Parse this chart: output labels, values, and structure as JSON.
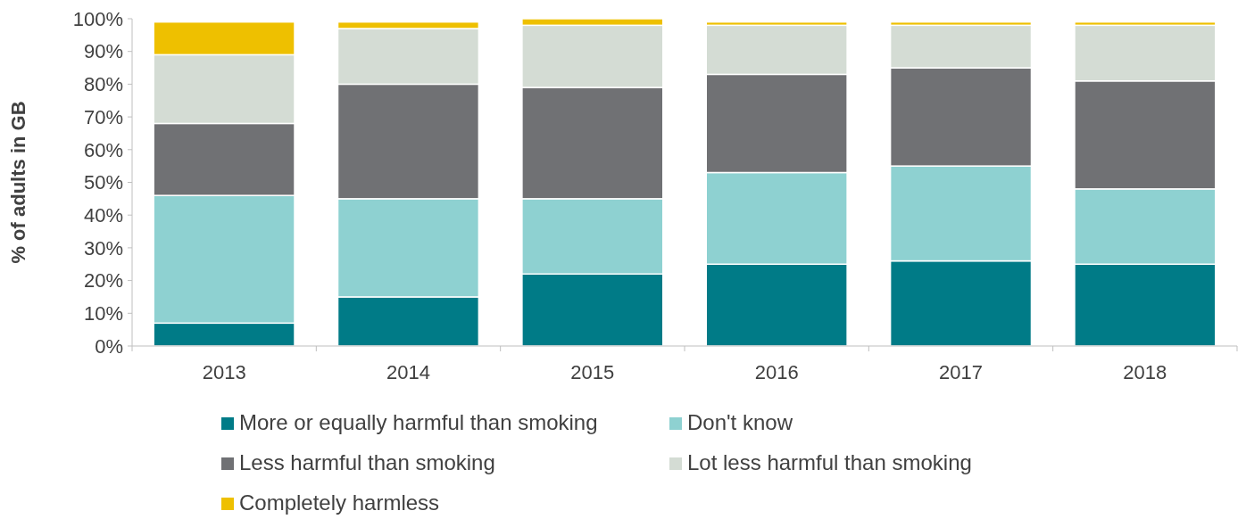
{
  "chart_data": {
    "type": "bar",
    "stacked": true,
    "ylabel": "% of adults in GB",
    "categories": [
      "2013",
      "2014",
      "2015",
      "2016",
      "2017",
      "2018"
    ],
    "series": [
      {
        "name": "More or equally harmful than smoking",
        "color": "#007b87",
        "values": [
          7,
          15,
          22,
          25,
          26,
          25
        ]
      },
      {
        "name": "Don't know",
        "color": "#8ed1d1",
        "values": [
          39,
          30,
          23,
          28,
          29,
          23
        ]
      },
      {
        "name": "Less harmful than smoking",
        "color": "#707174",
        "values": [
          22,
          35,
          34,
          30,
          30,
          33
        ]
      },
      {
        "name": "Lot less harmful than smoking",
        "color": "#d4dcd4",
        "values": [
          21,
          17,
          19,
          15,
          13,
          17
        ]
      },
      {
        "name": "Completely harmless",
        "color": "#eec000",
        "values": [
          10,
          2,
          2,
          1,
          1,
          1
        ]
      }
    ],
    "ylim": [
      0,
      100
    ],
    "yticks": [
      {
        "value": 0,
        "label": "0%"
      },
      {
        "value": 10,
        "label": "10%"
      },
      {
        "value": 20,
        "label": "20%"
      },
      {
        "value": 30,
        "label": "30%"
      },
      {
        "value": 40,
        "label": "40%"
      },
      {
        "value": 50,
        "label": "50%"
      },
      {
        "value": 60,
        "label": "60%"
      },
      {
        "value": 70,
        "label": "70%"
      },
      {
        "value": 80,
        "label": "80%"
      },
      {
        "value": 90,
        "label": "90%"
      },
      {
        "value": 100,
        "label": "100%"
      }
    ],
    "grid": false,
    "legend": "bottom"
  }
}
